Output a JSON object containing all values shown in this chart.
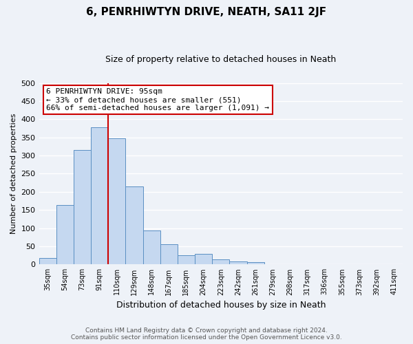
{
  "title": "6, PENRHIWTYN DRIVE, NEATH, SA11 2JF",
  "subtitle": "Size of property relative to detached houses in Neath",
  "xlabel": "Distribution of detached houses by size in Neath",
  "ylabel": "Number of detached properties",
  "bar_labels": [
    "35sqm",
    "54sqm",
    "73sqm",
    "91sqm",
    "110sqm",
    "129sqm",
    "148sqm",
    "167sqm",
    "185sqm",
    "204sqm",
    "223sqm",
    "242sqm",
    "261sqm",
    "279sqm",
    "298sqm",
    "317sqm",
    "336sqm",
    "355sqm",
    "373sqm",
    "392sqm",
    "411sqm"
  ],
  "bar_heights": [
    18,
    163,
    315,
    378,
    347,
    214,
    93,
    56,
    25,
    29,
    15,
    9,
    6,
    0,
    1,
    0,
    0,
    0,
    0,
    0,
    1
  ],
  "bar_color": "#c5d8f0",
  "bar_edge_color": "#5a8fc3",
  "vline_x_bar_idx": 3,
  "vline_color": "#cc0000",
  "annotation_line1": "6 PENRHIWTYN DRIVE: 95sqm",
  "annotation_line2": "← 33% of detached houses are smaller (551)",
  "annotation_line3": "66% of semi-detached houses are larger (1,091) →",
  "annotation_box_color": "#ffffff",
  "annotation_box_edge": "#cc0000",
  "ylim": [
    0,
    500
  ],
  "yticks": [
    0,
    50,
    100,
    150,
    200,
    250,
    300,
    350,
    400,
    450,
    500
  ],
  "footer_line1": "Contains HM Land Registry data © Crown copyright and database right 2024.",
  "footer_line2": "Contains public sector information licensed under the Open Government Licence v3.0.",
  "bg_color": "#eef2f8",
  "grid_color": "#ffffff",
  "title_fontsize": 11,
  "subtitle_fontsize": 9,
  "bar_font_size": 7,
  "ylabel_fontsize": 8,
  "xlabel_fontsize": 9
}
